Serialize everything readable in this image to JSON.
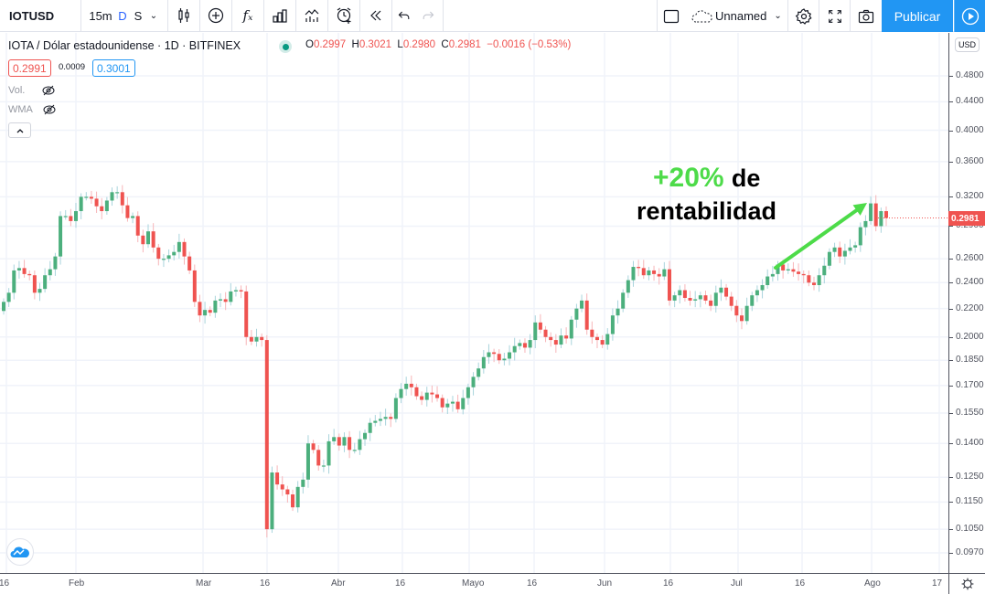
{
  "toolbar": {
    "symbol": "IOTUSD",
    "intervals": [
      "15m",
      "D",
      "S"
    ],
    "active_interval": "D",
    "layout_name": "Unnamed",
    "publish_label": "Publicar",
    "icons": [
      "candles-icon",
      "add-icon",
      "indicators-icon",
      "compare-icon",
      "templates-icon",
      "alert-icon",
      "replay-icon",
      "undo-icon",
      "redo-icon",
      "rectangle-icon",
      "cloud-icon",
      "gear-icon",
      "fullscreen-icon",
      "camera-icon",
      "play-icon"
    ]
  },
  "legend": {
    "title": "IOTA / Dólar estadounidense · 1D · BITFINEX",
    "o_label": "O",
    "o": "0.2997",
    "h_label": "H",
    "h": "0.3021",
    "l_label": "L",
    "l": "0.2980",
    "c_label": "C",
    "c": "0.2981",
    "change": "−0.0016 (−0.53%)",
    "sell_price": "0.2991",
    "spread": "0.0009",
    "buy_price": "0.3001",
    "indicators": [
      {
        "label": "Vol."
      },
      {
        "label": "WMA"
      }
    ],
    "collapse_label": "^"
  },
  "annotation": {
    "pct": "+20%",
    "line1_rest": "de",
    "line2": "rentabilidad",
    "color": "#4ddb49"
  },
  "price_axis": {
    "currency": "USD",
    "last_price": "0.2981",
    "last_price_color": "#ef5350"
  },
  "colors": {
    "up": "#26a69a",
    "up_body": "#4caf7d",
    "down": "#ef5350",
    "accent": "#2196f3",
    "grid": "#f0f3fa"
  },
  "chart_data": {
    "type": "candlestick",
    "title": "IOTA / Dólar estadounidense · 1D · BITFINEX",
    "xlabel": "",
    "ylabel": "USD",
    "scale": "logarithmic",
    "ylim": [
      0.092,
      0.53
    ],
    "grid": true,
    "y_ticks": [
      "0.4800",
      "0.4400",
      "0.4000",
      "0.3600",
      "0.3200",
      "0.2900",
      "0.2600",
      "0.2400",
      "0.2200",
      "0.2000",
      "0.1850",
      "0.1700",
      "0.1550",
      "0.1400",
      "0.1250",
      "0.1150",
      "0.1050",
      "0.0970"
    ],
    "x_ticks": [
      "16",
      "Feb",
      "Mar",
      "16",
      "Abr",
      "16",
      "Mayo",
      "16",
      "Jun",
      "16",
      "Jul",
      "16",
      "Ago",
      "17"
    ],
    "annotations": [
      "+20% de rentabilidad",
      "green arrow from ~0.250 (Jul 10) to ~0.318 (Ago 1)"
    ],
    "series": [
      {
        "name": "IOTUSD",
        "close_approx": [
          0.225,
          0.232,
          0.25,
          0.252,
          0.247,
          0.246,
          0.232,
          0.235,
          0.246,
          0.251,
          0.262,
          0.3,
          0.3,
          0.295,
          0.305,
          0.32,
          0.32,
          0.318,
          0.31,
          0.305,
          0.316,
          0.325,
          0.325,
          0.311,
          0.298,
          0.3,
          0.281,
          0.273,
          0.285,
          0.27,
          0.26,
          0.26,
          0.263,
          0.266,
          0.275,
          0.262,
          0.25,
          0.225,
          0.215,
          0.219,
          0.217,
          0.226,
          0.227,
          0.225,
          0.233,
          0.234,
          0.233,
          0.2,
          0.197,
          0.2,
          0.198,
          0.105,
          0.127,
          0.122,
          0.12,
          0.118,
          0.113,
          0.121,
          0.124,
          0.14,
          0.137,
          0.13,
          0.13,
          0.141,
          0.143,
          0.139,
          0.143,
          0.137,
          0.137,
          0.142,
          0.145,
          0.15,
          0.151,
          0.152,
          0.153,
          0.152,
          0.163,
          0.168,
          0.171,
          0.169,
          0.164,
          0.162,
          0.166,
          0.165,
          0.163,
          0.158,
          0.16,
          0.161,
          0.157,
          0.163,
          0.169,
          0.175,
          0.18,
          0.187,
          0.19,
          0.189,
          0.185,
          0.186,
          0.19,
          0.194,
          0.196,
          0.193,
          0.198,
          0.21,
          0.205,
          0.2,
          0.198,
          0.195,
          0.201,
          0.199,
          0.212,
          0.22,
          0.226,
          0.205,
          0.2,
          0.198,
          0.195,
          0.202,
          0.215,
          0.22,
          0.232,
          0.242,
          0.253,
          0.252,
          0.246,
          0.25,
          0.247,
          0.245,
          0.251,
          0.226,
          0.23,
          0.234,
          0.228,
          0.226,
          0.227,
          0.23,
          0.226,
          0.222,
          0.232,
          0.236,
          0.229,
          0.222,
          0.215,
          0.211,
          0.222,
          0.23,
          0.234,
          0.238,
          0.245,
          0.247,
          0.255,
          0.25,
          0.251,
          0.249,
          0.247,
          0.246,
          0.24,
          0.238,
          0.246,
          0.254,
          0.266,
          0.27,
          0.262,
          0.267,
          0.27,
          0.272,
          0.289,
          0.295,
          0.313,
          0.29,
          0.305,
          0.2981
        ]
      }
    ]
  }
}
